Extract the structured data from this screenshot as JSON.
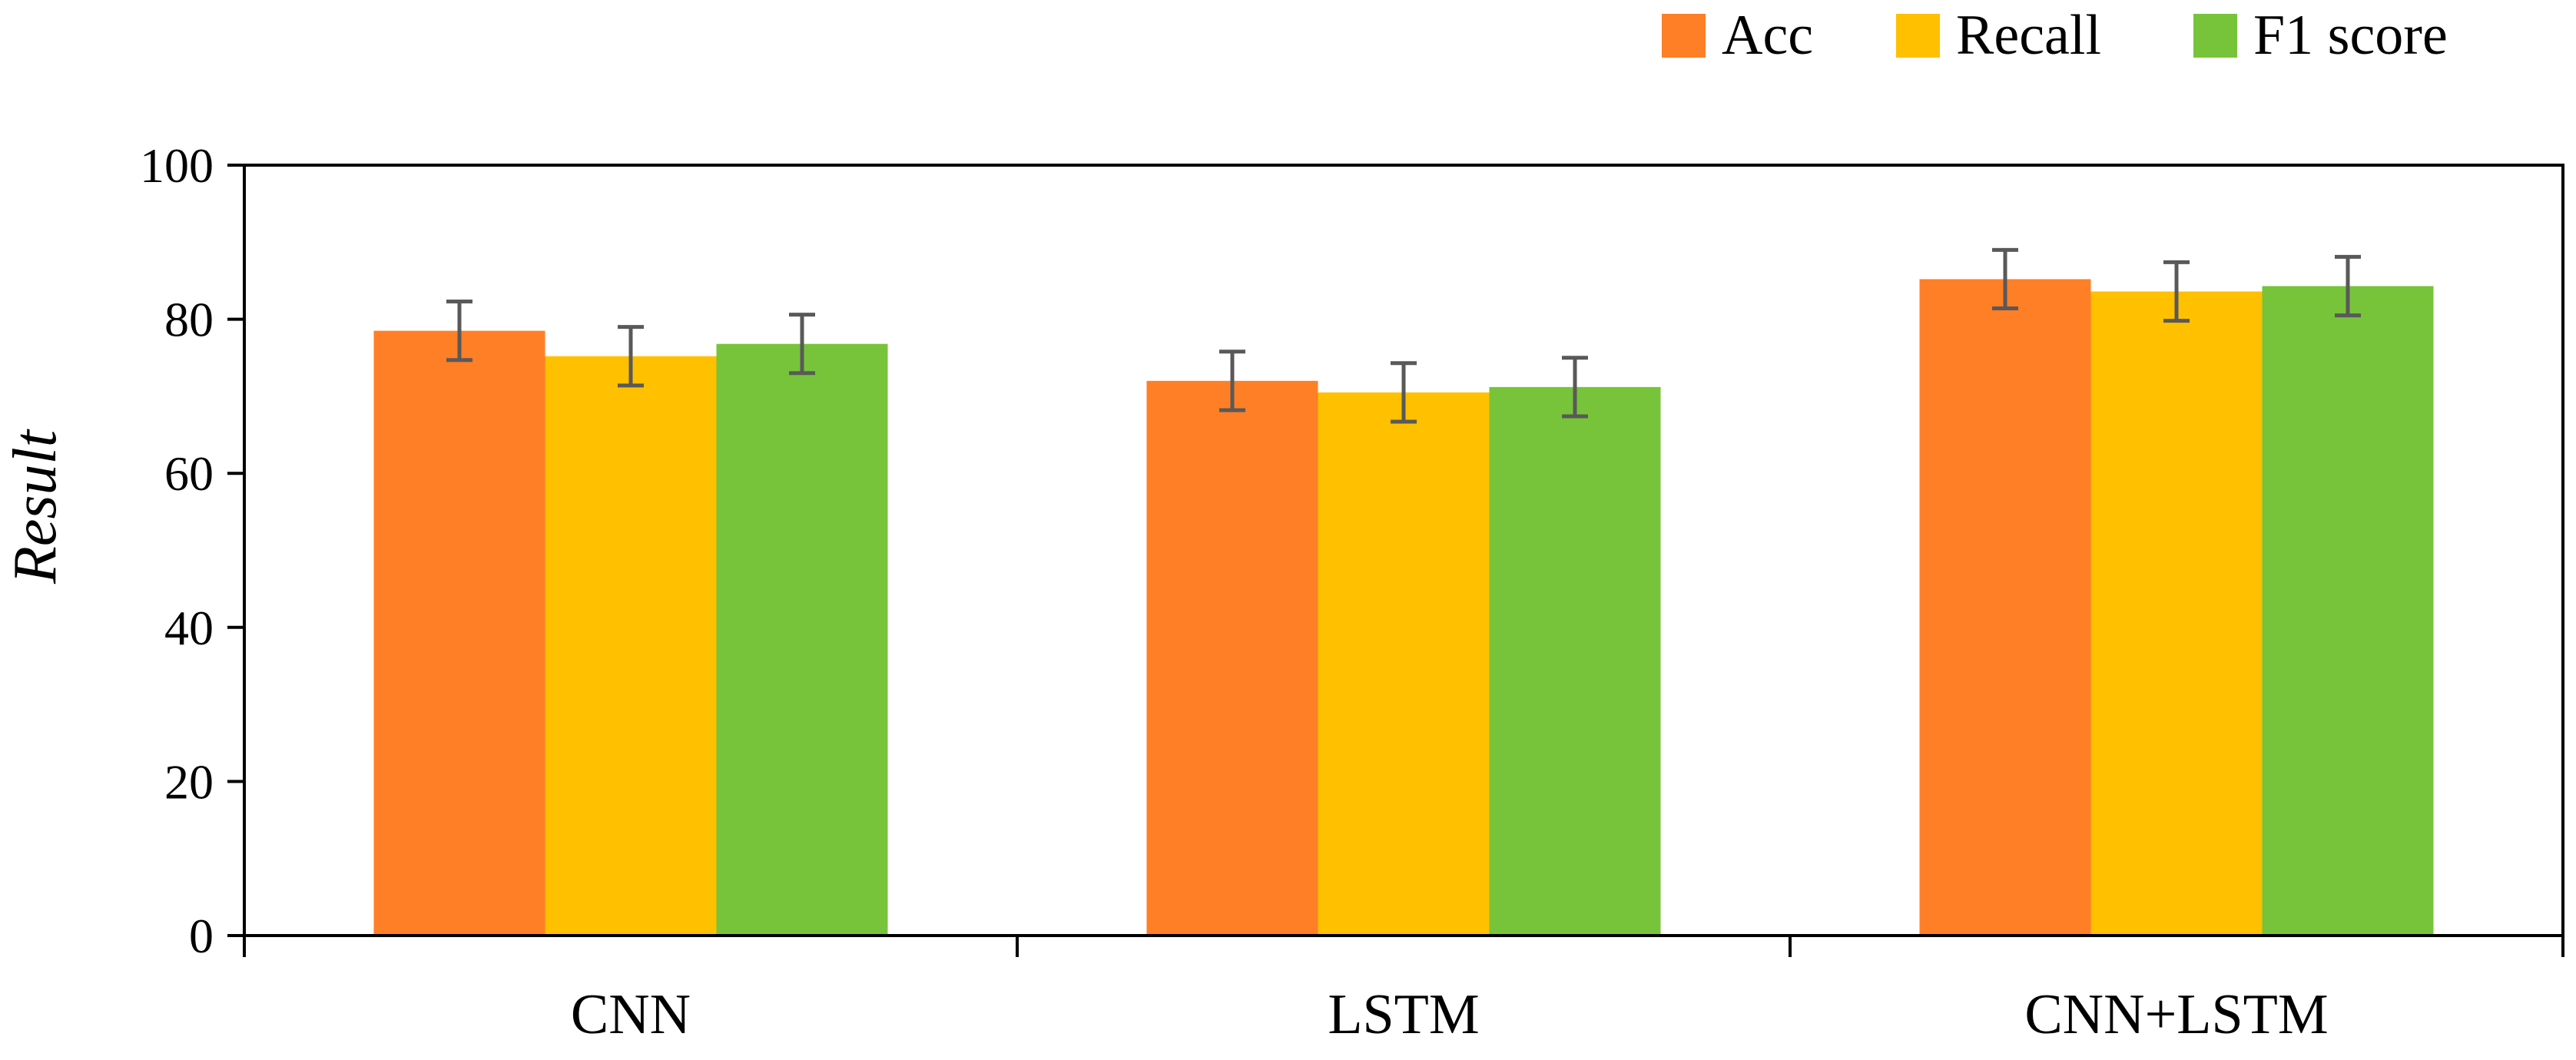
{
  "chart_data": {
    "type": "bar",
    "title": "",
    "xlabel": "",
    "ylabel": "Result",
    "categories": [
      "CNN",
      "LSTM",
      "CNN+LSTM"
    ],
    "ylim": [
      0,
      100
    ],
    "yticks": [
      0,
      20,
      40,
      60,
      80,
      100
    ],
    "grid": false,
    "legend": {
      "position": "top-right"
    },
    "series": [
      {
        "name": "Acc",
        "color": "#FF7F27",
        "values": [
          78.5,
          72.0,
          85.2
        ],
        "errors": [
          3.8,
          3.8,
          3.8
        ]
      },
      {
        "name": "Recall",
        "color": "#FFC000",
        "values": [
          75.2,
          70.5,
          83.6
        ],
        "errors": [
          3.8,
          3.8,
          3.8
        ]
      },
      {
        "name": "F1 score",
        "color": "#77C43A",
        "values": [
          76.8,
          71.2,
          84.3
        ],
        "errors": [
          3.8,
          3.8,
          3.8
        ]
      }
    ],
    "error_bar_color": "#595959"
  }
}
